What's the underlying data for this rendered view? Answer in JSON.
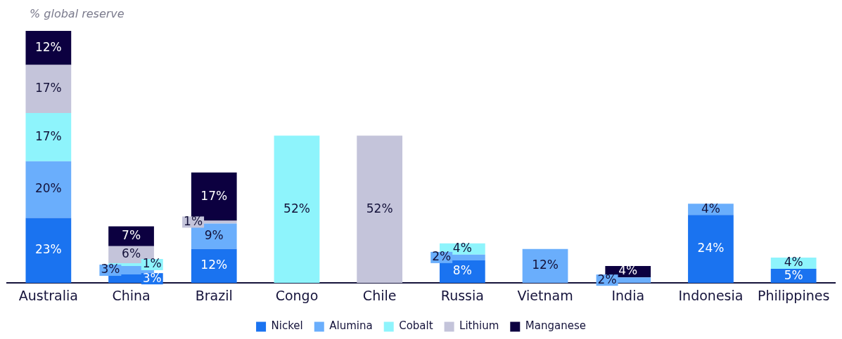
{
  "chart_data": {
    "type": "bar",
    "stacked": true,
    "ylabel": "% global reserve",
    "categories": [
      "Australia",
      "China",
      "Brazil",
      "Congo",
      "Chile",
      "Russia",
      "Vietnam",
      "India",
      "Indonesia",
      "Philippines"
    ],
    "series": [
      {
        "name": "Nickel",
        "color": "#1a73f0",
        "values": [
          23,
          3,
          12,
          null,
          null,
          8,
          null,
          null,
          24,
          5
        ],
        "value_labels": [
          "23%",
          "3%",
          "12%",
          null,
          null,
          "8%",
          null,
          null,
          "24%",
          "5%"
        ]
      },
      {
        "name": "Alumina",
        "color": "#6aaefc",
        "values": [
          20,
          3,
          9,
          null,
          null,
          2,
          12,
          2,
          4,
          null
        ],
        "value_labels": [
          "20%",
          "3%",
          "9%",
          null,
          null,
          "2%",
          "12%",
          "2%",
          "4%",
          null
        ]
      },
      {
        "name": "Cobalt",
        "color": "#8ef4fc",
        "values": [
          17,
          1,
          null,
          52,
          null,
          4,
          null,
          null,
          null,
          4
        ],
        "value_labels": [
          "17%",
          "1%",
          null,
          "52%",
          null,
          "4%",
          null,
          null,
          null,
          "4%"
        ]
      },
      {
        "name": "Lithium",
        "color": "#c4c4da",
        "values": [
          17,
          6,
          1,
          null,
          52,
          null,
          null,
          null,
          null,
          null
        ],
        "value_labels": [
          "17%",
          "6%",
          "1%",
          null,
          "52%",
          null,
          null,
          null,
          null,
          null
        ]
      },
      {
        "name": "Manganese",
        "color": "#0c0040",
        "values": [
          12,
          7,
          17,
          null,
          null,
          null,
          null,
          4,
          null,
          null
        ],
        "value_labels": [
          "12%",
          "7%",
          "17%",
          null,
          null,
          null,
          null,
          "4%",
          null,
          null
        ]
      }
    ],
    "legend": "bottom",
    "grid": false
  }
}
